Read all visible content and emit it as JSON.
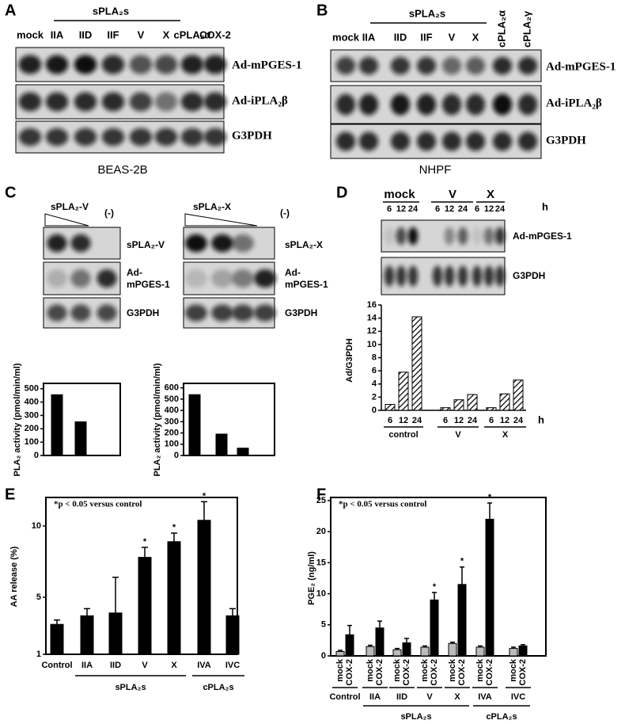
{
  "blots": [
    {
      "label": "A",
      "header": "sPLA₂s",
      "lanes": [
        "mock",
        "IIA",
        "IID",
        "IIF",
        "V",
        "X",
        "cPLA₂α",
        "COX-2"
      ],
      "rows": [
        "Ad-mPGES-1",
        "Ad-iPLA₂β",
        "G3PDH"
      ],
      "cell_line": "BEAS-2B"
    },
    {
      "label": "B",
      "header": "sPLA₂s",
      "lanes": [
        "mock",
        "IIA",
        "IID",
        "IIF",
        "V",
        "X",
        "cPLA₂α",
        "cPLA₂γ"
      ],
      "rows": [
        "Ad-mPGES-1",
        "Ad-iPLA₂β",
        "G3PDH"
      ],
      "cell_line": "NHPF"
    },
    {
      "label": "C",
      "header": "sPLA₂-V",
      "control_lane": "(-)",
      "rows": [
        "sPLA₂-V",
        [
          "Ad-",
          "mPGES-1"
        ],
        "G3PDH"
      ]
    },
    {
      "header": "sPLA₂-X",
      "control_lane": "(-)",
      "rows": [
        "sPLA₂-X",
        [
          "Ad-",
          "mPGES-1"
        ],
        "G3PDH"
      ]
    },
    {
      "label": "D",
      "groups": [
        "mock",
        "V",
        "X"
      ],
      "times": [
        "6",
        "12",
        "24"
      ],
      "unit": "h",
      "rows": [
        "Ad-mPGES-1",
        "G3PDH"
      ]
    }
  ],
  "chart_data": [
    {
      "type": "bar",
      "ylabel": "PLA₂ activity (pmol/min/ml)",
      "values": [
        455,
        252
      ],
      "color": "#000000",
      "ylim": [
        0,
        540
      ],
      "yticks": [
        0,
        100,
        200,
        300,
        400,
        500
      ]
    },
    {
      "type": "bar",
      "ylabel": "PLA₂ activity (pmol/min/ml)",
      "values": [
        540,
        190,
        65
      ],
      "color": "#000000",
      "ylim": [
        0,
        640
      ],
      "yticks": [
        0,
        100,
        200,
        300,
        400,
        500,
        600
      ]
    },
    {
      "type": "bar",
      "ylabel": "Ad/G3PDH",
      "categories": [
        "6",
        "12",
        "24",
        "6",
        "12",
        "24",
        "6",
        "12",
        "24"
      ],
      "groups": [
        "control",
        "V",
        "X"
      ],
      "x_unit": "h",
      "values": [
        0.9,
        5.8,
        14.2,
        0.4,
        1.6,
        2.4,
        0.4,
        2.5,
        4.6
      ],
      "pattern": "hatch",
      "ylim": [
        0,
        16
      ],
      "yticks": [
        0,
        2,
        4,
        6,
        8,
        10,
        12,
        14,
        16
      ]
    },
    {
      "type": "bar",
      "panel": "E",
      "annotation": "*p < 0.05 versus control",
      "ylabel": "AA release (%)",
      "categories": [
        "Control",
        "IIA",
        "IID",
        "V",
        "X",
        "IVA",
        "IVC"
      ],
      "values": [
        3.1,
        3.7,
        3.9,
        7.8,
        8.9,
        10.4,
        3.7
      ],
      "errors": [
        0.3,
        0.5,
        2.5,
        0.7,
        0.6,
        1.3,
        0.5
      ],
      "color": "#000000",
      "significance": "*",
      "significant_categories": [
        "V",
        "X",
        "IVA"
      ],
      "category_groups": [
        {
          "label": "sPLA₂s",
          "members": [
            "IIA",
            "IID",
            "V",
            "X"
          ]
        },
        {
          "label": "cPLA₂s",
          "members": [
            "IVA",
            "IVC"
          ]
        }
      ],
      "ylim": [
        1,
        12
      ],
      "yticks": [
        1,
        5,
        10
      ]
    },
    {
      "type": "grouped_bar",
      "panel": "F",
      "annotation": "*p < 0.05 versus control",
      "ylabel": "PGE₂ (ng/ml)",
      "categories": [
        "Control",
        "IIA",
        "IID",
        "V",
        "X",
        "IVA",
        "IVC"
      ],
      "series": [
        {
          "name": "mock",
          "color": "#bbbbbb",
          "values": [
            0.7,
            1.5,
            1.0,
            1.4,
            2.0,
            1.4,
            1.2
          ],
          "errors": [
            0.2,
            0.2,
            0.2,
            0.2,
            0.2,
            0.2,
            0.2
          ]
        },
        {
          "name": "COX-2",
          "color": "#000000",
          "values": [
            3.4,
            4.5,
            2.1,
            9.0,
            11.5,
            22.0,
            1.6
          ],
          "errors": [
            1.5,
            1.1,
            0.7,
            1.2,
            2.8,
            2.6,
            0.2
          ]
        }
      ],
      "significance": "*",
      "significant_categories": [
        "V",
        "X",
        "IVA"
      ],
      "category_groups": [
        {
          "label": "sPLA₂s",
          "members": [
            "IIA",
            "IID",
            "V",
            "X"
          ]
        },
        {
          "label": "cPLA₂s",
          "members": [
            "IVA",
            "IVC"
          ]
        }
      ],
      "ylim": [
        0,
        25.5
      ],
      "yticks": [
        0,
        5,
        10,
        15,
        20,
        25
      ]
    }
  ]
}
